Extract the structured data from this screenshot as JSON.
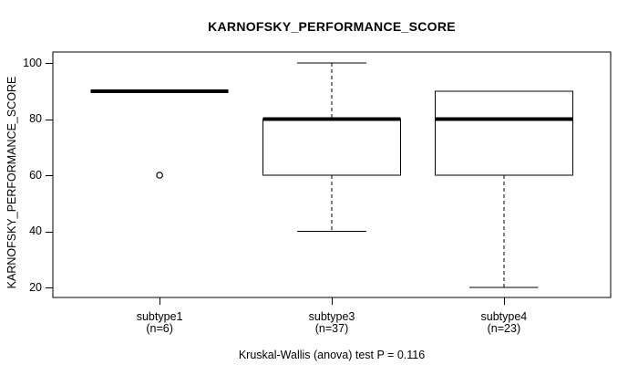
{
  "title": "KARNOFSKY_PERFORMANCE_SCORE",
  "chart_data": {
    "type": "boxplot",
    "title": "KARNOFSKY_PERFORMANCE_SCORE",
    "ylabel": "KARNOFSKY_PERFORMANCE_SCORE",
    "xlabel": "",
    "annotation": "Kruskal-Wallis (anova) test P = 0.116",
    "p_value": 0.116,
    "ylim": [
      20,
      100
    ],
    "yticks": [
      20,
      40,
      60,
      80,
      100
    ],
    "grid": false,
    "legend": "none",
    "groups": [
      {
        "label": "subtype1",
        "n": 6,
        "n_label": "(n=6)",
        "median": 90,
        "q1": 90,
        "q3": 90,
        "whisker_low": 90,
        "whisker_high": 90,
        "outliers": [
          60
        ]
      },
      {
        "label": "subtype3",
        "n": 37,
        "n_label": "(n=37)",
        "median": 80,
        "q1": 60,
        "q3": 80,
        "whisker_low": 40,
        "whisker_high": 100,
        "outliers": []
      },
      {
        "label": "subtype4",
        "n": 23,
        "n_label": "(n=23)",
        "median": 80,
        "q1": 60,
        "q3": 90,
        "whisker_low": 20,
        "whisker_high": 90,
        "outliers": []
      }
    ],
    "colors": {
      "line": "#000000",
      "box_fill": "#ffffff",
      "background": "#ffffff",
      "text": "#000000"
    }
  }
}
